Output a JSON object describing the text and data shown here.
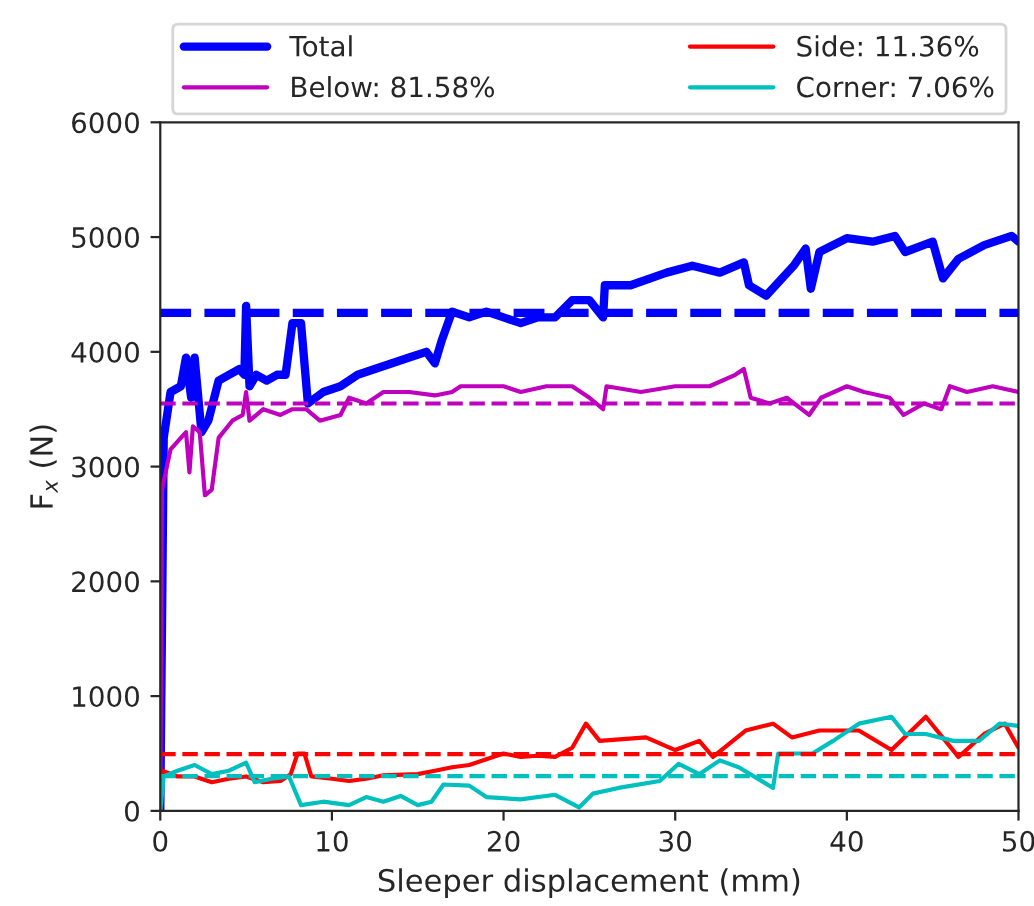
{
  "chart_data": {
    "type": "line",
    "xlabel": "Sleeper displacement (mm)",
    "ylabel": "F$_{x}$ (N)",
    "xlim": [
      0,
      50
    ],
    "ylim": [
      0,
      6000
    ],
    "xticks": [
      0,
      10,
      20,
      30,
      40,
      50
    ],
    "yticks": [
      0,
      1000,
      2000,
      3000,
      4000,
      5000,
      6000
    ],
    "grid": false,
    "legend": "top",
    "marker": "none",
    "line_style": "solid",
    "series": [
      {
        "name": "Total",
        "color": "#0000ff",
        "x": [
          0,
          0.2,
          0.6,
          1.2,
          1.5,
          1.8,
          2.0,
          2.4,
          2.8,
          3.4,
          4.0,
          4.6,
          4.9,
          5.0,
          5.2,
          5.6,
          6.2,
          6.8,
          7.3,
          7.7,
          8.2,
          8.6,
          9.5,
          10.5,
          11.5,
          12.5,
          13.5,
          14.5,
          15.5,
          16.0,
          16.4,
          17.0,
          18,
          19,
          20,
          21,
          22,
          23,
          24,
          25.0,
          25.8,
          25.9,
          27.4,
          29.5,
          31.0,
          32.6,
          34.0,
          34.3,
          35.3,
          36.9,
          37.6,
          37.9,
          38.4,
          40.0,
          41.5,
          42.8,
          43.4,
          45.0,
          45.6,
          46.5,
          48.0,
          49.6,
          50
        ],
        "values": [
          0,
          3250,
          3650,
          3700,
          3950,
          3600,
          3950,
          3300,
          3400,
          3750,
          3800,
          3850,
          3800,
          4400,
          3700,
          3800,
          3750,
          3800,
          3800,
          4250,
          4250,
          3550,
          3650,
          3700,
          3800,
          3850,
          3900,
          3950,
          4000,
          3900,
          4100,
          4350,
          4300,
          4350,
          4300,
          4250,
          4300,
          4300,
          4450,
          4450,
          4300,
          4580,
          4580,
          4690,
          4750,
          4690,
          4780,
          4580,
          4490,
          4750,
          4900,
          4550,
          4870,
          4990,
          4960,
          5010,
          4870,
          4960,
          4640,
          4810,
          4930,
          5010,
          4960
        ]
      },
      {
        "name": "Below: 81.58%",
        "color": "#bf00bf",
        "x": [
          0,
          0.1,
          0.6,
          1.2,
          1.5,
          1.7,
          1.9,
          2.3,
          2.6,
          3.0,
          3.4,
          4.2,
          4.8,
          5.0,
          5.2,
          6.0,
          7.0,
          7.7,
          8.5,
          9.3,
          10.5,
          11,
          12,
          13,
          14.5,
          16,
          17,
          17.5,
          19,
          20,
          21,
          22.5,
          24,
          25.0,
          25.8,
          26.0,
          28,
          30,
          32,
          33.5,
          34.0,
          34.4,
          35.5,
          36.5,
          37.8,
          38.5,
          40,
          41,
          42.5,
          43.3,
          44.5,
          45.5,
          46,
          47,
          48.5,
          50
        ],
        "values": [
          0,
          2800,
          3150,
          3250,
          3300,
          2950,
          3350,
          3300,
          2750,
          2800,
          3250,
          3400,
          3450,
          3650,
          3400,
          3500,
          3450,
          3500,
          3500,
          3400,
          3450,
          3600,
          3550,
          3650,
          3650,
          3620,
          3650,
          3700,
          3700,
          3700,
          3650,
          3700,
          3700,
          3600,
          3500,
          3700,
          3650,
          3700,
          3700,
          3800,
          3850,
          3600,
          3550,
          3600,
          3450,
          3600,
          3700,
          3650,
          3600,
          3450,
          3550,
          3500,
          3700,
          3650,
          3700,
          3650
        ]
      },
      {
        "name": "Side: 11.36%",
        "color": "#ff0000",
        "x": [
          0,
          0.1,
          1,
          2,
          3,
          4,
          5,
          6,
          7,
          7.6,
          8.0,
          8.4,
          8.8,
          10,
          11,
          12,
          13,
          15,
          16,
          17,
          18,
          19,
          20,
          21,
          22,
          23,
          24,
          24.8,
          25.6,
          28.3,
          30.0,
          31.4,
          32.2,
          34.1,
          35.7,
          36.8,
          38.4,
          40.7,
          42.6,
          44.6,
          46.5,
          48.0,
          49.2,
          50
        ],
        "values": [
          0,
          350,
          300,
          300,
          250,
          280,
          300,
          250,
          260,
          320,
          500,
          500,
          300,
          280,
          260,
          280,
          310,
          320,
          350,
          380,
          400,
          450,
          500,
          470,
          480,
          470,
          550,
          760,
          610,
          640,
          530,
          610,
          470,
          700,
          760,
          640,
          700,
          700,
          530,
          820,
          470,
          670,
          760,
          550
        ]
      },
      {
        "name": "Corner: 7.06%",
        "color": "#00bfbf",
        "x": [
          0,
          0.2,
          1,
          2,
          3,
          4,
          5,
          5.5,
          6.5,
          7.5,
          8.2,
          9.5,
          11,
          12,
          13,
          14,
          15,
          15.8,
          16.5,
          18,
          19,
          21,
          23,
          24.4,
          25.2,
          26.7,
          29.1,
          30.2,
          31.4,
          32.6,
          33.7,
          35.7,
          36.0,
          38.0,
          39.2,
          40.7,
          42.6,
          43.4,
          44.6,
          46.2,
          47.7,
          48.9,
          50
        ],
        "values": [
          0,
          300,
          350,
          400,
          320,
          350,
          420,
          250,
          280,
          300,
          50,
          80,
          50,
          120,
          80,
          130,
          50,
          80,
          230,
          220,
          120,
          100,
          140,
          30,
          150,
          200,
          260,
          410,
          320,
          440,
          380,
          200,
          500,
          500,
          610,
          760,
          820,
          670,
          670,
          610,
          610,
          760,
          740
        ]
      }
    ],
    "ref_lines": [
      {
        "axis": "y",
        "value": 4340,
        "color": "#0000ff",
        "line_style": "dashed"
      },
      {
        "axis": "y",
        "value": 3550,
        "color": "#bf00bf",
        "line_style": "dashed"
      },
      {
        "axis": "y",
        "value": 495,
        "color": "#ff0000",
        "line_style": "dashed"
      },
      {
        "axis": "y",
        "value": 303,
        "color": "#00bfbf",
        "line_style": "dashed"
      }
    ]
  }
}
